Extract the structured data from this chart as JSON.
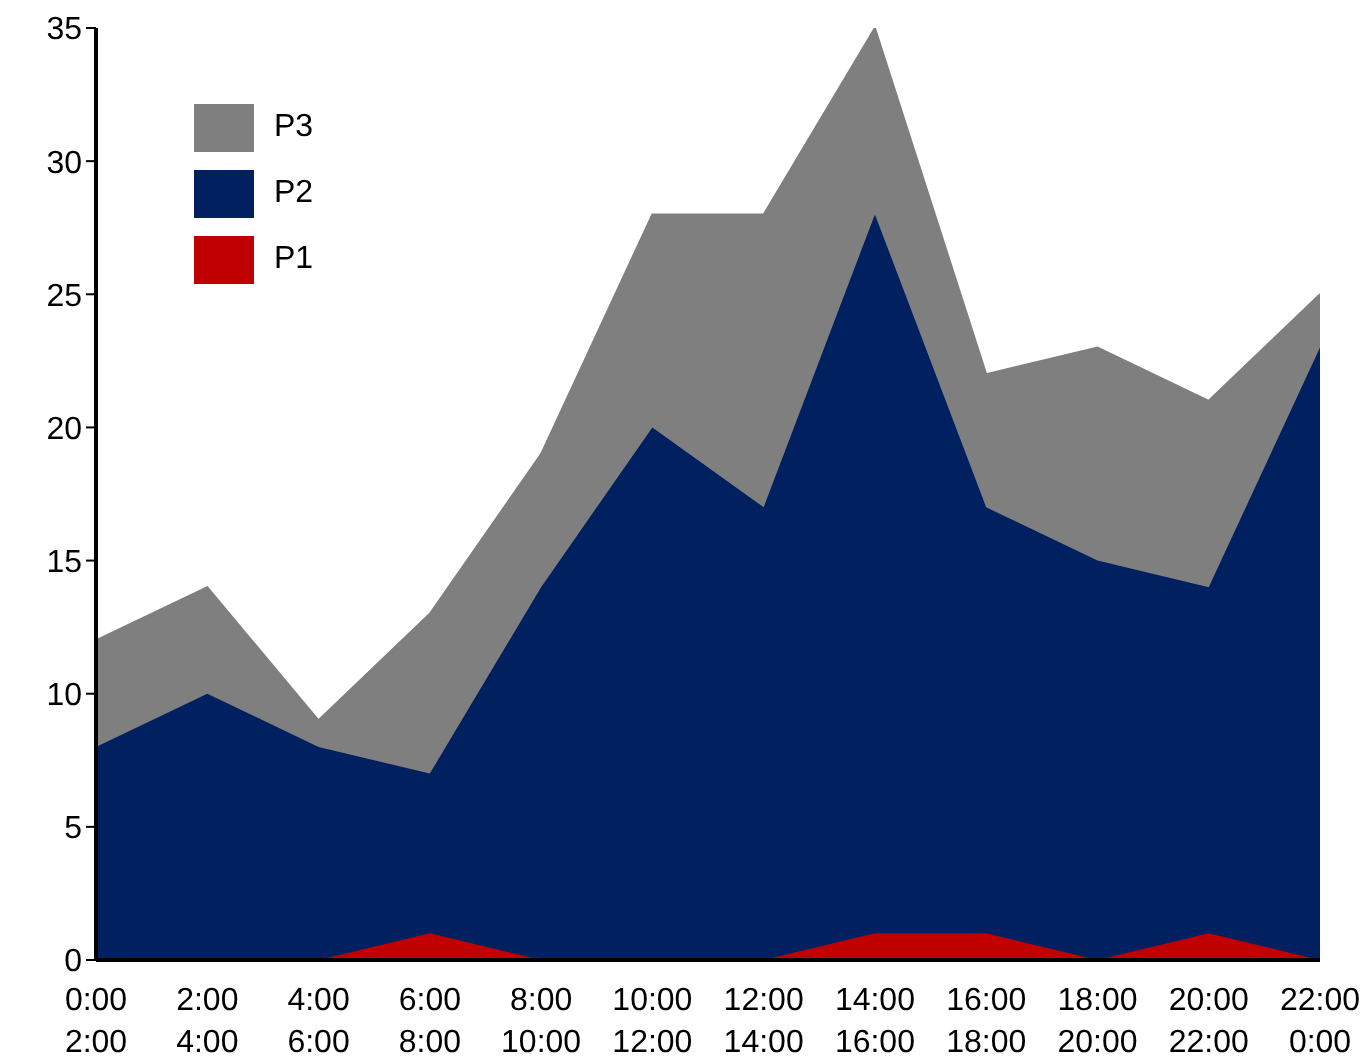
{
  "chart_data": {
    "type": "area",
    "stacked": true,
    "legend": "top left",
    "categories": [
      "0:00\n2:00",
      "2:00\n4:00",
      "4:00\n6:00",
      "6:00\n8:00",
      "8:00\n10:00",
      "10:00\n12:00",
      "12:00\n14:00",
      "14:00\n16:00",
      "16:00\n18:00",
      "18:00\n20:00",
      "20:00\n22:00",
      "22:00\n0:00"
    ],
    "series": [
      {
        "name": "P1",
        "color": "#c00000",
        "values": [
          0,
          0,
          0,
          1,
          0,
          0,
          0,
          1,
          1,
          0,
          1,
          0
        ]
      },
      {
        "name": "P2",
        "color": "#002060",
        "values": [
          8,
          10,
          8,
          6,
          14,
          20,
          17,
          27,
          16,
          15,
          13,
          23
        ]
      },
      {
        "name": "P3",
        "color": "#7f7f7f",
        "values": [
          4,
          4,
          1,
          6,
          5,
          8,
          11,
          7,
          5,
          8,
          7,
          2
        ]
      }
    ],
    "ylim": [
      0,
      35
    ],
    "yticks": [
      0,
      5,
      10,
      15,
      20,
      25,
      30,
      35
    ]
  }
}
